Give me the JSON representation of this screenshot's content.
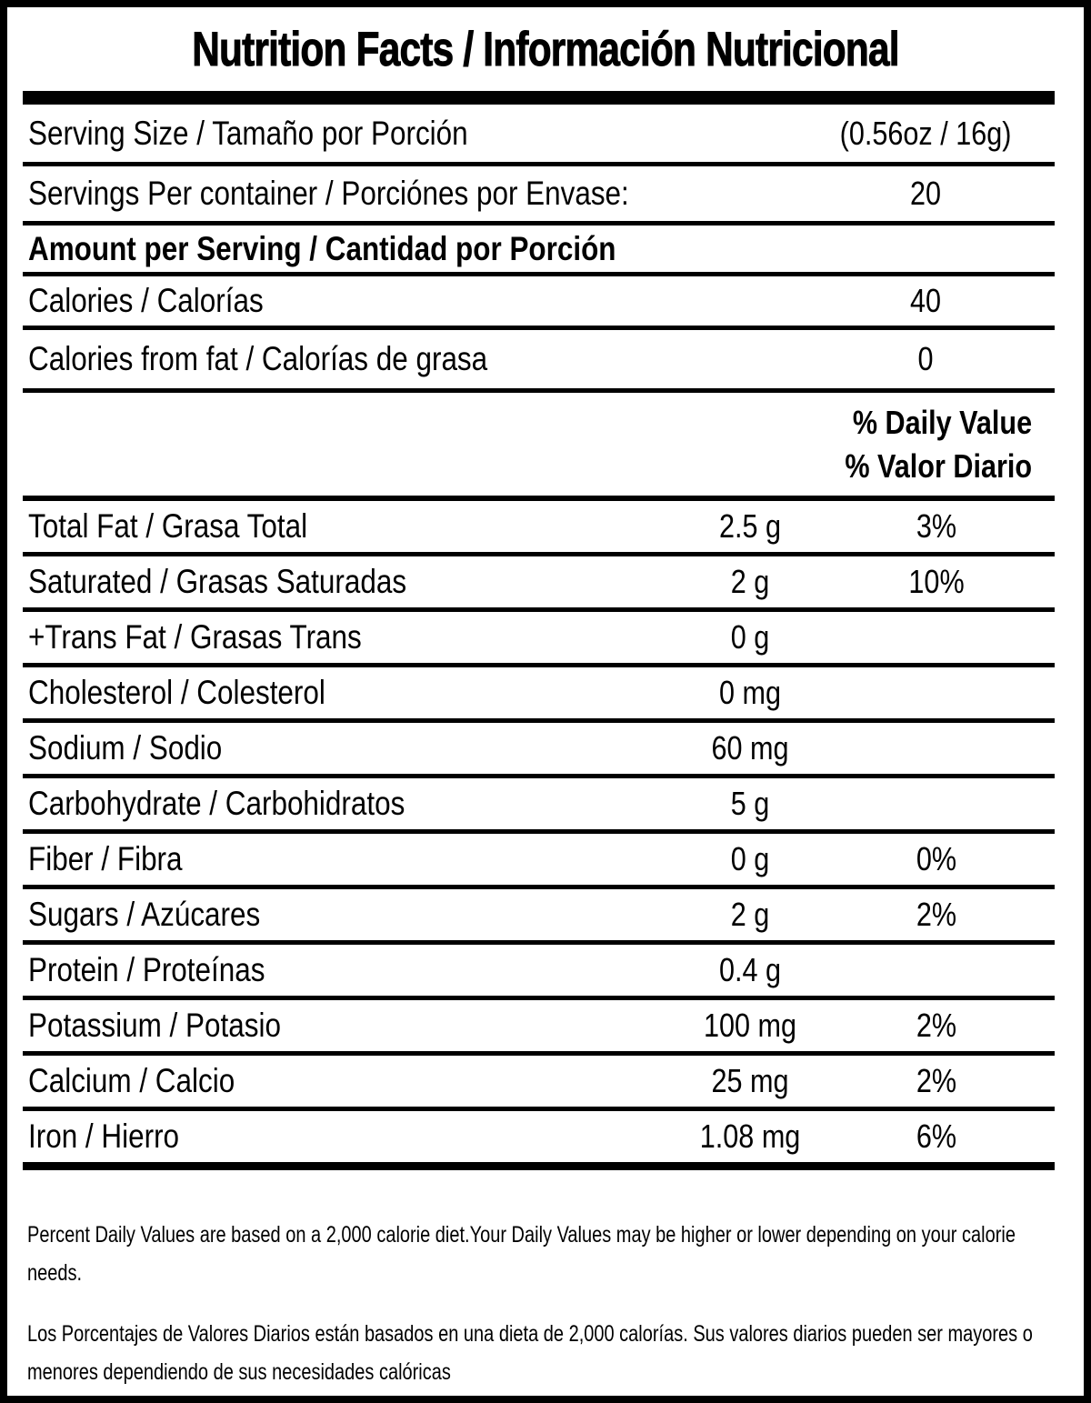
{
  "colors": {
    "ink": "#000000",
    "paper": "#ffffff"
  },
  "title": "Nutrition Facts / Información Nutricional",
  "serving": {
    "size_label": "Serving Size / Tamaño por Porción",
    "size_value": "(0.56oz / 16g)",
    "per_container_label": "Servings Per container / Porciónes por Envase:",
    "per_container_value": "20"
  },
  "amount_header": "Amount per Serving / Cantidad por Porción",
  "calories": {
    "label": "Calories / Calorías",
    "value": "40",
    "from_fat_label": "Calories from fat / Calorías de grasa",
    "from_fat_value": "0"
  },
  "daily_value_header": {
    "line1": "% Daily Value",
    "line2": "% Valor Diario"
  },
  "nutrients": [
    {
      "label": "Total Fat / Grasa Total",
      "amount": "2.5 g",
      "dv": "3%"
    },
    {
      "label": "Saturated / Grasas Saturadas",
      "amount": "2 g",
      "dv": "10%"
    },
    {
      "label": "+Trans Fat / Grasas Trans",
      "amount": "0 g",
      "dv": ""
    },
    {
      "label": "Cholesterol / Colesterol",
      "amount": "0 mg",
      "dv": ""
    },
    {
      "label": "Sodium / Sodio",
      "amount": "60 mg",
      "dv": ""
    },
    {
      "label": "Carbohydrate / Carbohidratos",
      "amount": "5 g",
      "dv": ""
    },
    {
      "label": "Fiber / Fibra",
      "amount": "0 g",
      "dv": "0%"
    },
    {
      "label": "Sugars / Azúcares",
      "amount": "2 g",
      "dv": "2%"
    },
    {
      "label": "Protein / Proteínas",
      "amount": "0.4 g",
      "dv": ""
    },
    {
      "label": "Potassium / Potasio",
      "amount": "100 mg",
      "dv": "2%"
    },
    {
      "label": "Calcium / Calcio",
      "amount": "25 mg",
      "dv": "2%"
    },
    {
      "label": "Iron / Hierro",
      "amount": "1.08 mg",
      "dv": "6%"
    }
  ],
  "footnotes": {
    "english": "Percent Daily Values are based on a 2,000 calorie diet.Your Daily Values may be higher or lower depending on your calorie needs.",
    "spanish": "Los Porcentajes de Valores Diarios están basados en una dieta de 2,000 calorías. Sus valores diarios pueden ser mayores o menores dependiendo de sus necesidades calóricas"
  }
}
